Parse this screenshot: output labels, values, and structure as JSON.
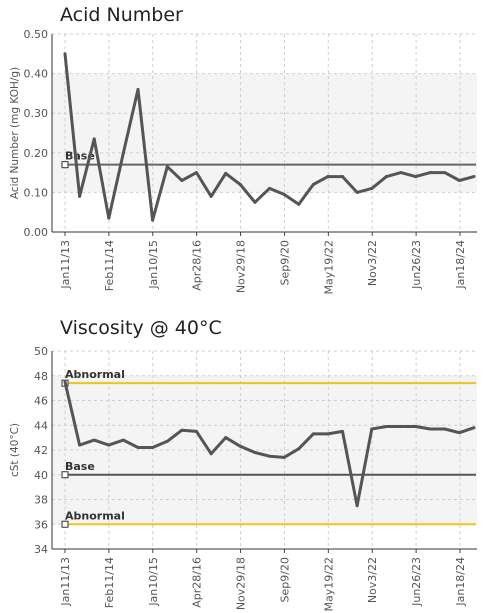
{
  "chart_data": [
    {
      "type": "line",
      "title": "Acid Number",
      "ylabel": "Acid Number (mg KOH/g)",
      "xlabel": "",
      "ylim": [
        0,
        0.5
      ],
      "yticks": [
        "0.00",
        "0.10",
        "0.20",
        "0.30",
        "0.40",
        "0.50"
      ],
      "grid": true,
      "band": [
        0.1,
        0.4
      ],
      "x_tick_labels": [
        "Jan11/13",
        "Feb11/14",
        "Jan10/15",
        "Apr28/16",
        "Nov29/18",
        "Sep9/20",
        "May19/22",
        "Nov3/22",
        "Jun26/23",
        "Jan18/24"
      ],
      "series": [
        {
          "values": [
            0.45,
            0.09,
            0.235,
            0.035,
            0.2,
            0.36,
            0.03,
            0.165,
            0.13,
            0.15,
            0.09,
            0.148,
            0.12,
            0.075,
            0.11,
            0.095,
            0.07,
            0.12,
            0.14,
            0.14,
            0.1,
            0.11,
            0.14,
            0.15,
            0.14,
            0.15,
            0.15,
            0.13,
            0.14
          ],
          "color": "#555555"
        }
      ],
      "reference_lines": [
        {
          "label": "Base",
          "value": 0.17,
          "color": "#666666"
        }
      ]
    },
    {
      "type": "line",
      "title": "Viscosity @ 40°C",
      "ylabel": "cSt (40°C)",
      "xlabel": "",
      "ylim": [
        34,
        50
      ],
      "yticks": [
        "34",
        "36",
        "38",
        "40",
        "42",
        "44",
        "46",
        "48",
        "50"
      ],
      "grid": true,
      "band": [
        36,
        48
      ],
      "x_tick_labels": [
        "Jan11/13",
        "Feb11/14",
        "Jan10/15",
        "Apr28/16",
        "Nov29/18",
        "Sep9/20",
        "May19/22",
        "Nov3/22",
        "Jun26/23",
        "Jan18/24"
      ],
      "series": [
        {
          "values": [
            47.5,
            42.4,
            42.8,
            42.4,
            42.8,
            42.2,
            42.2,
            42.7,
            43.6,
            43.5,
            41.7,
            43.0,
            42.3,
            41.8,
            41.5,
            41.4,
            42.1,
            43.3,
            43.3,
            43.5,
            37.5,
            43.7,
            43.9,
            43.9,
            43.9,
            43.7,
            43.7,
            43.4,
            43.8
          ],
          "color": "#555555"
        }
      ],
      "reference_lines": [
        {
          "label": "Abnormal",
          "value": 47.4,
          "color": "#f0c419"
        },
        {
          "label": "Base",
          "value": 40,
          "color": "#555555"
        },
        {
          "label": "Abnormal",
          "value": 36,
          "color": "#f0c419"
        }
      ]
    }
  ]
}
